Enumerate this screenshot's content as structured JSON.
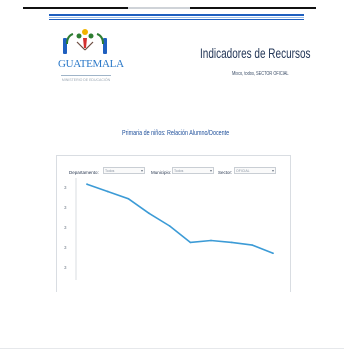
{
  "header": {
    "logo_text": "GUATEMALA",
    "logo_subtext": "MINISTERIO DE EDUCACIÓN",
    "title": "Indicadores de Recursos",
    "subtitle": "Mixco, todos, SECTOR OFICIAL"
  },
  "filters": [
    {
      "label": "Departamento:",
      "value": "Todos"
    },
    {
      "label": "Municipio:",
      "value": "Todos"
    },
    {
      "label": "Sector:",
      "value": "OFICIAL"
    }
  ],
  "colors": {
    "accent_blue": "#1f5fbf",
    "line": "#3c9bd6",
    "title_text": "#233657"
  },
  "chart_data": {
    "type": "line",
    "title": "Primaria de niños: Relación Alumno/Docente",
    "xlabel": "",
    "ylabel": "",
    "y_tick_labels": [
      "3",
      "3",
      "3",
      "3",
      "3",
      "3"
    ],
    "grid": false,
    "series": [
      {
        "values": [
          34.6,
          33.8,
          33.0,
          31.4,
          30.0,
          28.2,
          28.4,
          28.2,
          27.9,
          27.0
        ]
      }
    ],
    "ylim": [
      24.5,
      35.5
    ]
  }
}
